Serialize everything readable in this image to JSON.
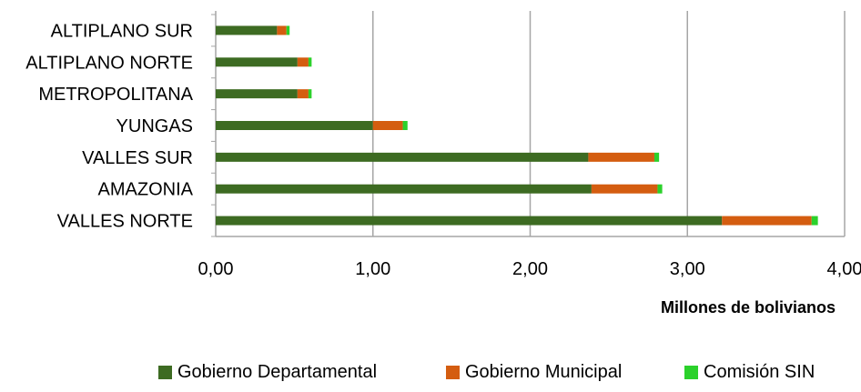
{
  "chart_data": {
    "type": "bar",
    "orientation": "horizontal",
    "stacked": true,
    "xlabel": "Millones de bolivianos",
    "xlim": [
      0,
      4
    ],
    "xticks": [
      "0,00",
      "1,00",
      "2,00",
      "3,00",
      "4,00"
    ],
    "xtick_values": [
      0,
      1,
      2,
      3,
      4
    ],
    "categories": [
      "ALTIPLANO SUR",
      "ALTIPLANO NORTE",
      "METROPOLITANA",
      "YUNGAS",
      "VALLES SUR",
      "AMAZONIA",
      "VALLES NORTE"
    ],
    "series": [
      {
        "name": "Gobierno Departamental",
        "color": "#3d6b22",
        "values": [
          0.39,
          0.52,
          0.52,
          1.0,
          2.37,
          2.39,
          3.22
        ]
      },
      {
        "name": "Gobierno Municipal",
        "color": "#d45d10",
        "values": [
          0.06,
          0.07,
          0.07,
          0.19,
          0.42,
          0.42,
          0.57
        ]
      },
      {
        "name": "Comisión SIN",
        "color": "#2bd12b",
        "values": [
          0.02,
          0.02,
          0.02,
          0.03,
          0.03,
          0.03,
          0.04
        ]
      }
    ],
    "grid": true,
    "legend_position": "bottom"
  }
}
